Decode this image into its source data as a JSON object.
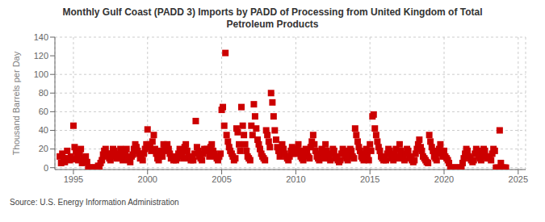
{
  "chart_data": {
    "type": "scatter",
    "title": "Monthly Gulf Coast (PADD 3) Imports by PADD of Processing from United Kingdom of Total\nPetroleum Products",
    "ylabel": "Thousand Barrels per Day",
    "annotations": [
      "Source: U.S. Energy Information Administration"
    ],
    "color": "#cc0000",
    "marker": "square",
    "grid": true,
    "xlim": [
      1993.75,
      2025.5
    ],
    "ylim": [
      -2,
      140
    ],
    "xticks": [
      1995,
      2000,
      2005,
      2010,
      2015,
      2020,
      2025
    ],
    "yticks": [
      0,
      20,
      40,
      60,
      80,
      100,
      120,
      140
    ],
    "x": [
      1994.08,
      1994.17,
      1994.25,
      1994.33,
      1994.42,
      1994.5,
      1994.58,
      1994.67,
      1994.75,
      1994.83,
      1994.92,
      1995.0,
      1995.08,
      1995.17,
      1995.25,
      1995.33,
      1995.42,
      1995.5,
      1995.58,
      1995.67,
      1995.75,
      1995.83,
      1995.92,
      1996.0,
      1996.08,
      1996.17,
      1996.25,
      1996.33,
      1996.42,
      1996.5,
      1996.58,
      1996.67,
      1996.75,
      1996.83,
      1996.92,
      1997.0,
      1997.08,
      1997.17,
      1997.25,
      1997.33,
      1997.42,
      1997.5,
      1997.58,
      1997.67,
      1997.75,
      1997.83,
      1997.92,
      1998.0,
      1998.08,
      1998.17,
      1998.25,
      1998.33,
      1998.42,
      1998.5,
      1998.58,
      1998.67,
      1998.75,
      1998.83,
      1998.92,
      1999.0,
      1999.08,
      1999.17,
      1999.25,
      1999.33,
      1999.42,
      1999.5,
      1999.58,
      1999.67,
      1999.75,
      1999.83,
      1999.92,
      2000.0,
      2000.08,
      2000.17,
      2000.25,
      2000.33,
      2000.42,
      2000.5,
      2000.58,
      2000.67,
      2000.75,
      2000.83,
      2000.92,
      2001.0,
      2001.08,
      2001.17,
      2001.25,
      2001.33,
      2001.42,
      2001.5,
      2001.58,
      2001.67,
      2001.75,
      2001.83,
      2001.92,
      2002.0,
      2002.08,
      2002.17,
      2002.25,
      2002.33,
      2002.42,
      2002.5,
      2002.58,
      2002.67,
      2002.75,
      2002.83,
      2002.92,
      2003.0,
      2003.08,
      2003.17,
      2003.25,
      2003.33,
      2003.42,
      2003.5,
      2003.58,
      2003.67,
      2003.75,
      2003.83,
      2003.92,
      2004.0,
      2004.08,
      2004.17,
      2004.25,
      2004.33,
      2004.42,
      2004.5,
      2004.58,
      2004.67,
      2004.75,
      2004.83,
      2004.92,
      2005.0,
      2005.08,
      2005.17,
      2005.25,
      2005.33,
      2005.42,
      2005.5,
      2005.58,
      2005.67,
      2005.75,
      2005.83,
      2005.92,
      2006.0,
      2006.08,
      2006.17,
      2006.25,
      2006.33,
      2006.42,
      2006.5,
      2006.58,
      2006.67,
      2006.75,
      2006.83,
      2006.92,
      2007.0,
      2007.08,
      2007.17,
      2007.25,
      2007.33,
      2007.42,
      2007.5,
      2007.58,
      2007.67,
      2007.75,
      2007.83,
      2007.92,
      2008.0,
      2008.08,
      2008.17,
      2008.25,
      2008.33,
      2008.42,
      2008.5,
      2008.58,
      2008.67,
      2008.75,
      2008.83,
      2008.92,
      2009.0,
      2009.08,
      2009.17,
      2009.25,
      2009.33,
      2009.42,
      2009.5,
      2009.58,
      2009.67,
      2009.75,
      2009.83,
      2009.92,
      2010.0,
      2010.08,
      2010.17,
      2010.25,
      2010.33,
      2010.42,
      2010.5,
      2010.58,
      2010.67,
      2010.75,
      2010.83,
      2010.92,
      2011.0,
      2011.08,
      2011.17,
      2011.25,
      2011.33,
      2011.42,
      2011.5,
      2011.58,
      2011.67,
      2011.75,
      2011.83,
      2011.92,
      2012.0,
      2012.08,
      2012.17,
      2012.25,
      2012.33,
      2012.42,
      2012.5,
      2012.58,
      2012.67,
      2012.75,
      2012.83,
      2012.92,
      2013.0,
      2013.08,
      2013.17,
      2013.25,
      2013.33,
      2013.42,
      2013.5,
      2013.58,
      2013.67,
      2013.75,
      2013.83,
      2013.92,
      2014.0,
      2014.08,
      2014.17,
      2014.25,
      2014.33,
      2014.42,
      2014.5,
      2014.58,
      2014.67,
      2014.75,
      2014.83,
      2014.92,
      2015.0,
      2015.08,
      2015.17,
      2015.25,
      2015.33,
      2015.42,
      2015.5,
      2015.58,
      2015.67,
      2015.75,
      2015.83,
      2015.92,
      2016.0,
      2016.08,
      2016.17,
      2016.25,
      2016.33,
      2016.42,
      2016.5,
      2016.58,
      2016.67,
      2016.75,
      2016.83,
      2016.92,
      2017.0,
      2017.08,
      2017.17,
      2017.25,
      2017.33,
      2017.42,
      2017.5,
      2017.58,
      2017.67,
      2017.75,
      2017.83,
      2017.92,
      2018.0,
      2018.08,
      2018.17,
      2018.25,
      2018.33,
      2018.42,
      2018.5,
      2018.58,
      2018.67,
      2018.75,
      2018.83,
      2018.92,
      2019.0,
      2019.08,
      2019.17,
      2019.25,
      2019.33,
      2019.42,
      2019.5,
      2019.58,
      2019.67,
      2019.75,
      2019.83,
      2019.92,
      2020.0,
      2020.08,
      2020.17,
      2020.25,
      2020.33,
      2020.42,
      2020.5,
      2020.58,
      2020.67,
      2020.75,
      2020.83,
      2020.92,
      2021.0,
      2021.08,
      2021.17,
      2021.25,
      2021.33,
      2021.42,
      2021.5,
      2021.58,
      2021.67,
      2021.75,
      2021.83,
      2021.92,
      2022.0,
      2022.08,
      2022.17,
      2022.25,
      2022.33,
      2022.42,
      2022.5,
      2022.58,
      2022.67,
      2022.75,
      2022.83,
      2022.92,
      2023.0,
      2023.08,
      2023.17,
      2023.25,
      2023.33,
      2023.42,
      2023.5,
      2023.58,
      2023.67,
      2023.75,
      2023.83,
      2023.92,
      2024.0,
      2024.08,
      2024.17
    ],
    "values": [
      12,
      5,
      15,
      10,
      6,
      10,
      18,
      10,
      8,
      12,
      9,
      45,
      22,
      18,
      12,
      8,
      15,
      20,
      5,
      10,
      8,
      12,
      6,
      0,
      0,
      0,
      0,
      0,
      0,
      0,
      0,
      2,
      0,
      5,
      8,
      14,
      18,
      20,
      15,
      12,
      10,
      8,
      15,
      20,
      18,
      12,
      10,
      10,
      15,
      20,
      18,
      8,
      12,
      15,
      20,
      10,
      8,
      6,
      12,
      14,
      20,
      25,
      22,
      18,
      15,
      10,
      12,
      8,
      15,
      20,
      25,
      41,
      25,
      22,
      18,
      28,
      35,
      20,
      15,
      10,
      8,
      12,
      18,
      12,
      25,
      22,
      18,
      25,
      20,
      15,
      10,
      12,
      8,
      10,
      8,
      10,
      15,
      20,
      18,
      12,
      10,
      22,
      25,
      18,
      12,
      10,
      8,
      10,
      8,
      15,
      50,
      22,
      18,
      12,
      10,
      8,
      15,
      20,
      18,
      20,
      18,
      12,
      22,
      25,
      18,
      15,
      12,
      10,
      8,
      12,
      15,
      62,
      65,
      45,
      123,
      35,
      28,
      22,
      18,
      15,
      12,
      8,
      10,
      42,
      38,
      25,
      18,
      65,
      45,
      35,
      25,
      18,
      12,
      10,
      8,
      45,
      35,
      68,
      55,
      42,
      30,
      25,
      20,
      15,
      12,
      10,
      8,
      40,
      35,
      28,
      22,
      80,
      70,
      55,
      40,
      30,
      22,
      18,
      12,
      18,
      25,
      20,
      15,
      12,
      10,
      8,
      12,
      18,
      22,
      15,
      20,
      15,
      20,
      25,
      18,
      12,
      10,
      8,
      15,
      20,
      18,
      12,
      10,
      22,
      28,
      35,
      25,
      18,
      12,
      10,
      8,
      15,
      20,
      12,
      10,
      25,
      18,
      12,
      10,
      8,
      15,
      20,
      18,
      12,
      10,
      8,
      6,
      8,
      15,
      20,
      18,
      12,
      10,
      8,
      15,
      20,
      18,
      12,
      10,
      42,
      35,
      28,
      22,
      18,
      12,
      10,
      8,
      15,
      20,
      12,
      8,
      25,
      18,
      55,
      57,
      42,
      35,
      28,
      22,
      18,
      12,
      10,
      8,
      10,
      8,
      15,
      20,
      18,
      12,
      10,
      8,
      15,
      20,
      12,
      10,
      25,
      18,
      12,
      10,
      8,
      15,
      20,
      18,
      12,
      10,
      8,
      6,
      8,
      15,
      20,
      25,
      30,
      22,
      18,
      12,
      10,
      8,
      6,
      5,
      35,
      28,
      22,
      18,
      12,
      10,
      8,
      15,
      20,
      25,
      18,
      12,
      18,
      12,
      10,
      8,
      5,
      0,
      0,
      0,
      0,
      0,
      0,
      0,
      0,
      0,
      0,
      5,
      10,
      15,
      20,
      18,
      12,
      10,
      8,
      6,
      8,
      15,
      20,
      18,
      12,
      10,
      8,
      15,
      20,
      18,
      12,
      10,
      12,
      10,
      8,
      15,
      20,
      18,
      0,
      0,
      0,
      40,
      5,
      0,
      0,
      0,
      0
    ]
  }
}
